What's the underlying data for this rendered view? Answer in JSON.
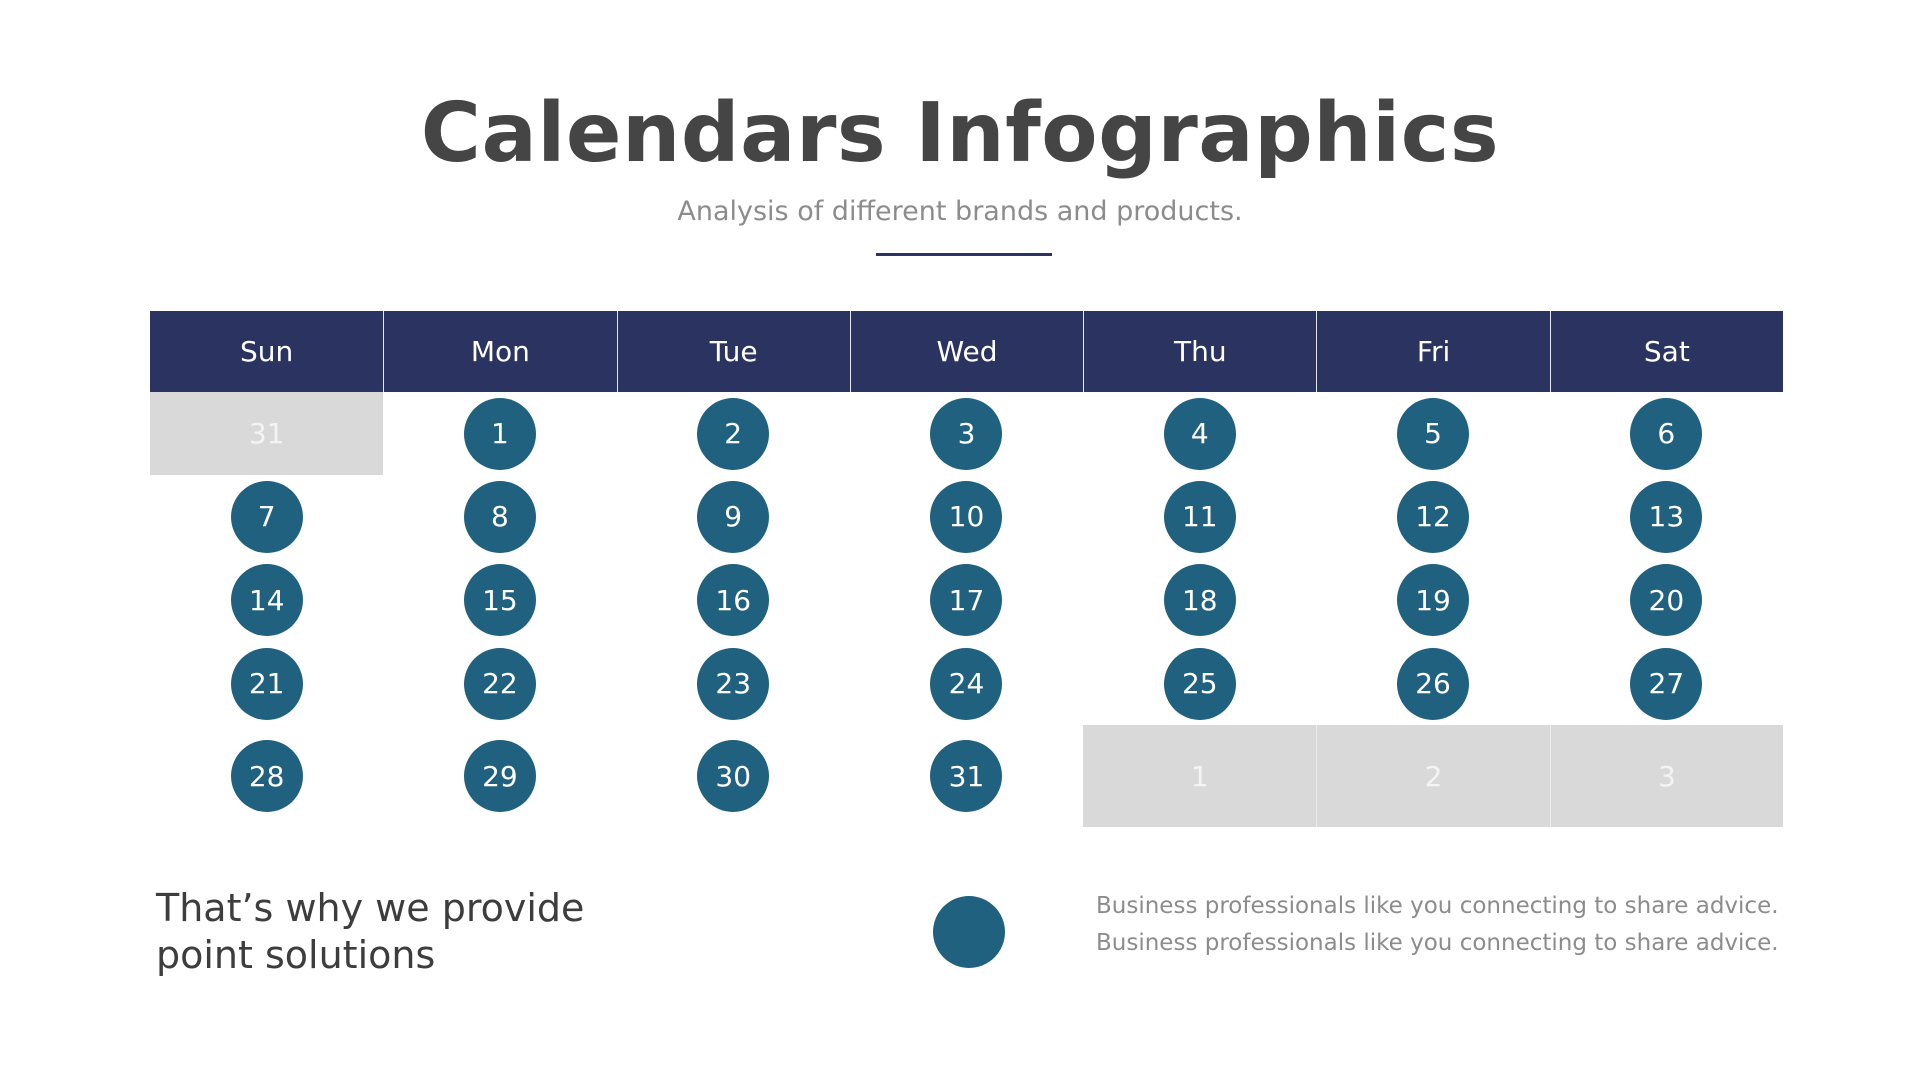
{
  "title": "Calendars Infographics",
  "subtitle": "Analysis of different brands and products.",
  "colors": {
    "header": "#2b3360",
    "day_circle": "#20617f",
    "out_of_month": "#d9d9d9"
  },
  "calendar": {
    "weekdays": [
      "Sun",
      "Mon",
      "Tue",
      "Wed",
      "Thu",
      "Fri",
      "Sat"
    ],
    "weeks": [
      [
        {
          "d": "31",
          "out": true
        },
        {
          "d": "1"
        },
        {
          "d": "2"
        },
        {
          "d": "3"
        },
        {
          "d": "4"
        },
        {
          "d": "5"
        },
        {
          "d": "6"
        }
      ],
      [
        {
          "d": "7"
        },
        {
          "d": "8"
        },
        {
          "d": "9"
        },
        {
          "d": "10"
        },
        {
          "d": "11"
        },
        {
          "d": "12"
        },
        {
          "d": "13"
        }
      ],
      [
        {
          "d": "14"
        },
        {
          "d": "15"
        },
        {
          "d": "16"
        },
        {
          "d": "17"
        },
        {
          "d": "18"
        },
        {
          "d": "19"
        },
        {
          "d": "20"
        }
      ],
      [
        {
          "d": "21"
        },
        {
          "d": "22"
        },
        {
          "d": "23"
        },
        {
          "d": "24"
        },
        {
          "d": "25"
        },
        {
          "d": "26"
        },
        {
          "d": "27"
        }
      ],
      [
        {
          "d": "28"
        },
        {
          "d": "29"
        },
        {
          "d": "30"
        },
        {
          "d": "31"
        },
        {
          "d": "1",
          "out": true
        },
        {
          "d": "2",
          "out": true
        },
        {
          "d": "3",
          "out": true
        }
      ]
    ]
  },
  "footer": {
    "tagline_line1": "That’s why we provide",
    "tagline_line2": "point solutions",
    "legend_line1": "Business professionals like you connecting to share advice.",
    "legend_line2": "Business professionals like you connecting to share advice."
  }
}
